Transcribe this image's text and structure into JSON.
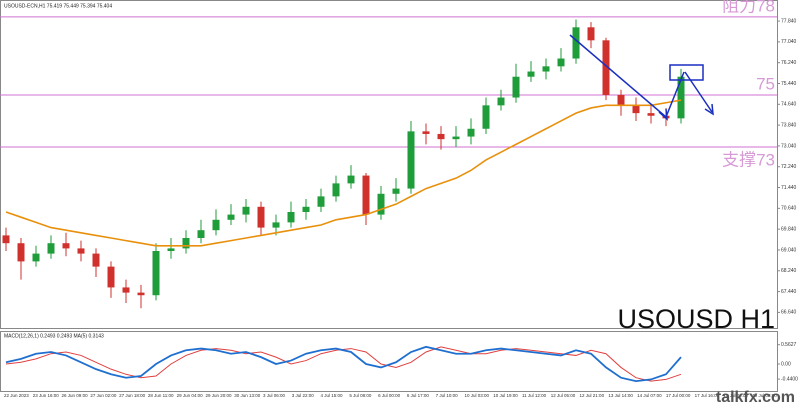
{
  "chart_data": {
    "type": "candlestick",
    "title": "USOUSD-ECN,H1  75.419 75.449 75.394 75.404",
    "watermark": "USOUSD H1",
    "site": "talkfx.com",
    "open": [
      69.6,
      69.3,
      68.6,
      68.9,
      69.3,
      69.1,
      68.9,
      68.4,
      67.6,
      67.4,
      67.3,
      69.0,
      69.1,
      69.5,
      69.8,
      70.2,
      70.4,
      70.7,
      69.9,
      70.1,
      70.5,
      70.7,
      71.1,
      71.6,
      71.9,
      70.4,
      71.2,
      71.4,
      73.6,
      73.5,
      73.3,
      73.4,
      73.7,
      74.6,
      74.9,
      75.7,
      75.9,
      76.1,
      76.4,
      77.6,
      77.1,
      75.0,
      74.6,
      74.3,
      74.2,
      74.1
    ],
    "high": [
      69.9,
      69.5,
      69.2,
      69.6,
      69.7,
      69.4,
      69.1,
      68.6,
      67.9,
      67.7,
      69.3,
      69.5,
      69.8,
      70.2,
      70.6,
      70.8,
      71.0,
      70.9,
      70.4,
      70.9,
      71.0,
      71.4,
      71.9,
      72.3,
      72.0,
      71.5,
      71.8,
      74.0,
      73.9,
      73.8,
      73.8,
      74.1,
      74.9,
      75.2,
      76.2,
      76.3,
      76.4,
      76.8,
      77.9,
      77.8,
      77.2,
      75.2,
      74.9,
      74.6,
      74.5,
      76.0
    ],
    "low": [
      69.0,
      67.9,
      68.4,
      68.7,
      68.8,
      68.6,
      68.0,
      67.2,
      67.0,
      66.8,
      67.1,
      68.7,
      68.9,
      69.3,
      69.6,
      70.0,
      70.1,
      69.6,
      69.6,
      69.9,
      70.2,
      70.5,
      70.9,
      71.4,
      70.0,
      70.2,
      70.9,
      71.2,
      73.1,
      72.9,
      73.0,
      73.1,
      73.5,
      74.4,
      74.7,
      75.5,
      75.6,
      75.9,
      76.2,
      76.8,
      74.8,
      74.2,
      74.0,
      73.9,
      73.8,
      73.9
    ],
    "close": [
      69.3,
      68.6,
      68.9,
      69.3,
      69.1,
      68.9,
      68.4,
      67.6,
      67.4,
      67.3,
      69.0,
      69.1,
      69.5,
      69.8,
      70.2,
      70.4,
      70.7,
      69.9,
      70.1,
      70.5,
      70.7,
      71.1,
      71.6,
      71.9,
      70.4,
      71.2,
      71.4,
      73.6,
      73.5,
      73.3,
      73.4,
      73.7,
      74.6,
      74.9,
      75.7,
      75.9,
      76.1,
      76.4,
      77.6,
      77.1,
      75.0,
      74.6,
      74.3,
      74.2,
      74.1,
      75.7
    ],
    "up_color": "#1f9d3a",
    "down_color": "#d0312d",
    "ma_values": [
      70.5,
      70.3,
      70.1,
      69.9,
      69.8,
      69.7,
      69.6,
      69.5,
      69.4,
      69.3,
      69.2,
      69.2,
      69.2,
      69.2,
      69.3,
      69.4,
      69.5,
      69.6,
      69.7,
      69.8,
      69.9,
      70.0,
      70.2,
      70.3,
      70.4,
      70.6,
      70.8,
      71.1,
      71.4,
      71.6,
      71.8,
      72.1,
      72.5,
      72.8,
      73.1,
      73.4,
      73.7,
      74.0,
      74.3,
      74.5,
      74.6,
      74.6,
      74.6,
      74.6,
      74.7,
      74.8
    ],
    "ma_color": "#e8900c",
    "ylim": [
      66.04,
      78.65
    ],
    "yticks": [
      {
        "value": 77.84,
        "label": "77.840"
      },
      {
        "value": 77.04,
        "label": "77.040"
      },
      {
        "value": 76.24,
        "label": "76.240"
      },
      {
        "value": 75.44,
        "label": "75.440"
      },
      {
        "value": 74.64,
        "label": "74.640"
      },
      {
        "value": 73.84,
        "label": "73.840"
      },
      {
        "value": 73.04,
        "label": "73.040"
      },
      {
        "value": 72.24,
        "label": "72.240"
      },
      {
        "value": 71.44,
        "label": "71.440"
      },
      {
        "value": 70.64,
        "label": "70.640"
      },
      {
        "value": 69.84,
        "label": "69.840"
      },
      {
        "value": 69.04,
        "label": "69.040"
      },
      {
        "value": 68.24,
        "label": "68.240"
      },
      {
        "value": 67.44,
        "label": "67.440"
      },
      {
        "value": 66.64,
        "label": "66.640"
      }
    ],
    "levels": [
      78,
      75,
      73
    ],
    "level_labels": [
      "阻力78",
      "75",
      "支撑73"
    ],
    "level_color": "#d070d0",
    "indicator_title": "MACD(12,26,1) 0.2493 0.2493 MA(5) 0.3143",
    "macd": [
      0.05,
      0.15,
      0.3,
      0.35,
      0.25,
      0.05,
      -0.15,
      -0.3,
      -0.4,
      -0.35,
      0.0,
      0.25,
      0.4,
      0.45,
      0.4,
      0.3,
      0.35,
      0.2,
      0.0,
      0.1,
      0.3,
      0.4,
      0.45,
      0.35,
      0.0,
      -0.1,
      0.05,
      0.35,
      0.5,
      0.4,
      0.3,
      0.3,
      0.4,
      0.45,
      0.4,
      0.35,
      0.3,
      0.25,
      0.4,
      0.3,
      -0.1,
      -0.4,
      -0.5,
      -0.45,
      -0.3,
      0.2
    ],
    "signal": [
      0.0,
      0.05,
      0.15,
      0.3,
      0.35,
      0.25,
      0.05,
      -0.15,
      -0.3,
      -0.4,
      -0.35,
      0.0,
      0.25,
      0.4,
      0.45,
      0.4,
      0.3,
      0.35,
      0.2,
      0.0,
      0.1,
      0.3,
      0.4,
      0.45,
      0.35,
      0.0,
      -0.1,
      0.05,
      0.35,
      0.5,
      0.4,
      0.3,
      0.3,
      0.4,
      0.45,
      0.4,
      0.35,
      0.3,
      0.25,
      0.4,
      0.3,
      -0.1,
      -0.4,
      -0.5,
      -0.45,
      -0.3
    ],
    "macd_color": "#1f6fd0",
    "signal_color": "#e04040",
    "macd_ylim": [
      -0.7,
      0.7
    ],
    "macd_yticks": [
      {
        "value": 0.5627,
        "label": "0.5627"
      },
      {
        "value": 0,
        "label": "0.00"
      },
      {
        "value": -0.44,
        "label": "-0.4400"
      }
    ],
    "date_labels": [
      "22 Jun 2023",
      "23 Jun 16:00",
      "26 Jun 09:00",
      "27 Jun 02:00",
      "27 Jun 18:00",
      "28 Jun 11:00",
      "29 Jun 04:00",
      "29 Jun 20:00",
      "30 Jun 13:00",
      "3 Jul 06:00",
      "3 Jul 22:00",
      "4 Jul 15:00",
      "5 Jul 08:00",
      "6 Jul 00:00",
      "6 Jul 17:00",
      "7 Jul 10:00",
      "10 Jul 03:00",
      "10 Jul 19:00",
      "11 Jul 12:00",
      "12 Jul 05:00",
      "12 Jul 21:00",
      "13 Jul 14:00",
      "14 Jul 07:00",
      "17 Jul 00:00",
      "17 Jul 16:00",
      "18 Jul 09:00",
      "19 Jul 02:00"
    ]
  }
}
